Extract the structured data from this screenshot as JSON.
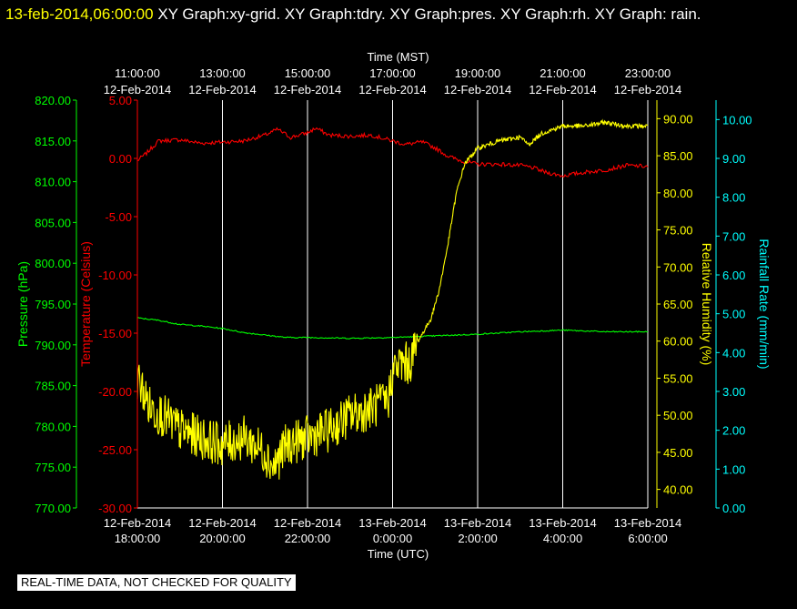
{
  "header": {
    "timestamp": "13-feb-2014,06:00:00",
    "graphs": " XY Graph:xy-grid.  XY Graph:tdry.  XY Graph:pres.  XY Graph:rh.  XY Graph: rain."
  },
  "notice": "REAL-TIME DATA, NOT CHECKED FOR QUALITY",
  "colors": {
    "temperature": "#ff0000",
    "pressure": "#00ff00",
    "humidity": "#ffff00",
    "rain": "#00ffff",
    "grid": "#ffffff"
  },
  "chart_data": {
    "type": "line",
    "x_range_hours": [
      0,
      12
    ],
    "top_axis": {
      "title": "Time (MST)",
      "ticks": [
        {
          "x": 0,
          "time": "11:00:00",
          "date": "12-Feb-2014"
        },
        {
          "x": 2,
          "time": "13:00:00",
          "date": "12-Feb-2014"
        },
        {
          "x": 4,
          "time": "15:00:00",
          "date": "12-Feb-2014"
        },
        {
          "x": 6,
          "time": "17:00:00",
          "date": "12-Feb-2014"
        },
        {
          "x": 8,
          "time": "19:00:00",
          "date": "12-Feb-2014"
        },
        {
          "x": 10,
          "time": "21:00:00",
          "date": "12-Feb-2014"
        },
        {
          "x": 12,
          "time": "23:00:00",
          "date": "12-Feb-2014"
        }
      ]
    },
    "bottom_axis": {
      "title": "Time (UTC)",
      "ticks": [
        {
          "x": 0,
          "date": "12-Feb-2014",
          "time": "18:00:00"
        },
        {
          "x": 2,
          "date": "12-Feb-2014",
          "time": "20:00:00"
        },
        {
          "x": 4,
          "date": "12-Feb-2014",
          "time": "22:00:00"
        },
        {
          "x": 6,
          "date": "13-Feb-2014",
          "time": "0:00:00"
        },
        {
          "x": 8,
          "date": "13-Feb-2014",
          "time": "2:00:00"
        },
        {
          "x": 10,
          "date": "13-Feb-2014",
          "time": "4:00:00"
        },
        {
          "x": 12,
          "date": "13-Feb-2014",
          "time": "6:00:00"
        }
      ]
    },
    "axes": {
      "pressure": {
        "title": "Pressure (hPa)",
        "range": [
          770,
          820
        ],
        "ticks": [
          "820.00",
          "815.00",
          "810.00",
          "805.00",
          "800.00",
          "795.00",
          "790.00",
          "785.00",
          "780.00",
          "775.00",
          "770.00"
        ]
      },
      "temperature": {
        "title": "Temperature (Celsius)",
        "range": [
          -30,
          5
        ],
        "ticks": [
          "5.00",
          "0.00",
          "-5.00",
          "-10.00",
          "-15.00",
          "-20.00",
          "-25.00",
          "-30.00"
        ]
      },
      "humidity": {
        "title": "Relative Humidity (%)",
        "range": [
          37.5,
          92.5
        ],
        "ticks": [
          "90.00",
          "85.00",
          "80.00",
          "75.00",
          "70.00",
          "65.00",
          "60.00",
          "55.00",
          "50.00",
          "45.00",
          "40.00"
        ]
      },
      "rain": {
        "title": "Rainfall Rate (mm/min)",
        "range": [
          0,
          10.5
        ],
        "ticks": [
          "10.00",
          "9.00",
          "8.00",
          "7.00",
          "6.00",
          "5.00",
          "4.00",
          "3.00",
          "2.00",
          "1.00",
          "0.00"
        ]
      }
    },
    "series": [
      {
        "key": "temperature",
        "axis": "temperature",
        "color": "#ff0000",
        "points": [
          [
            0,
            -0.2
          ],
          [
            0.2,
            0.4
          ],
          [
            0.5,
            1.5
          ],
          [
            1,
            1.6
          ],
          [
            1.5,
            1.3
          ],
          [
            2,
            1.4
          ],
          [
            2.5,
            1.5
          ],
          [
            3,
            2
          ],
          [
            3.3,
            2.5
          ],
          [
            3.6,
            1.8
          ],
          [
            4,
            2.2
          ],
          [
            4.2,
            2.6
          ],
          [
            4.5,
            2
          ],
          [
            5,
            1.9
          ],
          [
            5.5,
            2.0
          ],
          [
            6,
            1.5
          ],
          [
            6.3,
            1.2
          ],
          [
            6.7,
            1.4
          ],
          [
            7,
            0.9
          ],
          [
            7.3,
            0.2
          ],
          [
            7.6,
            -0.2
          ],
          [
            8,
            -0.5
          ],
          [
            8.5,
            -0.5
          ],
          [
            9,
            -0.6
          ],
          [
            9.3,
            -0.8
          ],
          [
            9.6,
            -1.2
          ],
          [
            10,
            -1.5
          ],
          [
            10.5,
            -1.2
          ],
          [
            11,
            -1.0
          ],
          [
            11.5,
            -0.6
          ],
          [
            12,
            -0.7
          ]
        ]
      },
      {
        "key": "pressure",
        "axis": "pressure",
        "color": "#00ff00",
        "points": [
          [
            0,
            793.3
          ],
          [
            0.5,
            793.0
          ],
          [
            1,
            792.5
          ],
          [
            1.5,
            792.3
          ],
          [
            2,
            792.0
          ],
          [
            2.5,
            791.5
          ],
          [
            3,
            791.2
          ],
          [
            3.5,
            790.9
          ],
          [
            4,
            790.9
          ],
          [
            5,
            790.8
          ],
          [
            6,
            790.9
          ],
          [
            7,
            791.1
          ],
          [
            8,
            791.3
          ],
          [
            9,
            791.6
          ],
          [
            10,
            791.8
          ],
          [
            11,
            791.6
          ],
          [
            12,
            791.6
          ]
        ]
      },
      {
        "key": "humidity",
        "axis": "humidity",
        "color": "#ffff00",
        "noisy_until": 6.6,
        "points": [
          [
            0,
            55
          ],
          [
            0.15,
            53
          ],
          [
            0.3,
            51
          ],
          [
            0.6,
            50
          ],
          [
            1,
            48
          ],
          [
            1.5,
            47
          ],
          [
            2,
            46
          ],
          [
            2.5,
            47
          ],
          [
            3,
            45
          ],
          [
            3.2,
            43
          ],
          [
            3.5,
            46
          ],
          [
            4,
            47
          ],
          [
            4.5,
            48
          ],
          [
            5,
            50
          ],
          [
            5.5,
            51
          ],
          [
            5.9,
            52
          ],
          [
            6,
            56
          ],
          [
            6.2,
            57
          ],
          [
            6.4,
            57
          ],
          [
            6.6,
            60
          ],
          [
            6.9,
            63
          ],
          [
            7.1,
            67
          ],
          [
            7.3,
            73
          ],
          [
            7.5,
            80
          ],
          [
            7.7,
            84
          ],
          [
            8,
            86
          ],
          [
            8.5,
            87
          ],
          [
            9,
            87.5
          ],
          [
            9.2,
            86.5
          ],
          [
            9.5,
            88
          ],
          [
            10,
            89
          ],
          [
            10.5,
            89
          ],
          [
            11,
            89.5
          ],
          [
            11.5,
            89
          ],
          [
            12,
            89
          ]
        ]
      }
    ]
  }
}
